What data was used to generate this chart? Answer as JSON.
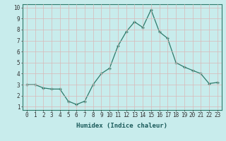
{
  "x": [
    0,
    1,
    2,
    3,
    4,
    5,
    6,
    7,
    8,
    9,
    10,
    11,
    12,
    13,
    14,
    15,
    16,
    17,
    18,
    19,
    20,
    21,
    22,
    23
  ],
  "y": [
    3.0,
    3.0,
    2.7,
    2.6,
    2.6,
    1.5,
    1.2,
    1.5,
    3.0,
    4.0,
    4.5,
    6.5,
    7.8,
    8.7,
    8.2,
    9.8,
    7.8,
    7.2,
    5.0,
    4.6,
    4.3,
    4.0,
    3.1,
    3.2
  ],
  "xlabel": "Humidex (Indice chaleur)",
  "xlim": [
    -0.5,
    23.5
  ],
  "ylim": [
    0.7,
    10.3
  ],
  "yticks": [
    1,
    2,
    3,
    4,
    5,
    6,
    7,
    8,
    9,
    10
  ],
  "xticks": [
    0,
    1,
    2,
    3,
    4,
    5,
    6,
    7,
    8,
    9,
    10,
    11,
    12,
    13,
    14,
    15,
    16,
    17,
    18,
    19,
    20,
    21,
    22,
    23
  ],
  "line_color": "#2d7a6a",
  "marker_color": "#2d7a6a",
  "bg_color": "#c8ecec",
  "grid_color": "#d8b8b8",
  "label_fontsize": 6.5,
  "tick_fontsize": 5.5
}
